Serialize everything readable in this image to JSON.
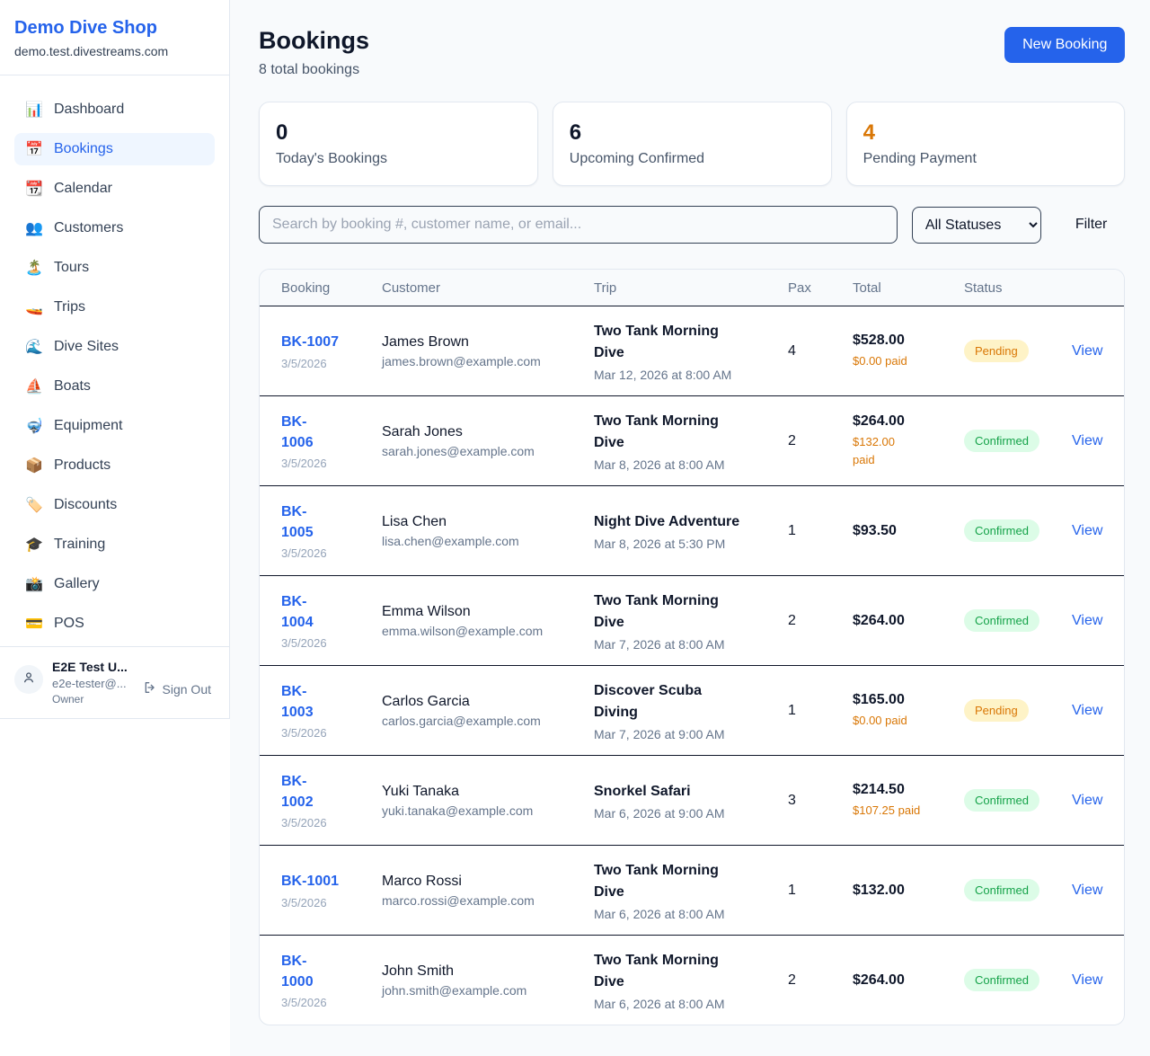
{
  "colors": {
    "accent": "#2563eb",
    "page_bg": "#f8fafc",
    "card_border": "#e2e8f0",
    "row_divider": "#0f172a",
    "pending_fg": "#d97706",
    "pending_bg": "#fef3c7",
    "confirmed_fg": "#16a34a",
    "confirmed_bg": "#dcfce7",
    "paid_text": "#d97706"
  },
  "sidebar": {
    "shop_name": "Demo Dive Shop",
    "domain": "demo.test.divestreams.com",
    "items": [
      {
        "label": "Dashboard",
        "icon": "📊",
        "slug": "dashboard",
        "active": false
      },
      {
        "label": "Bookings",
        "icon": "📅",
        "slug": "bookings",
        "active": true
      },
      {
        "label": "Calendar",
        "icon": "📆",
        "slug": "calendar",
        "active": false
      },
      {
        "label": "Customers",
        "icon": "👥",
        "slug": "customers",
        "active": false
      },
      {
        "label": "Tours",
        "icon": "🏝️",
        "slug": "tours",
        "active": false
      },
      {
        "label": "Trips",
        "icon": "🚤",
        "slug": "trips",
        "active": false
      },
      {
        "label": "Dive Sites",
        "icon": "🌊",
        "slug": "dive-sites",
        "active": false
      },
      {
        "label": "Boats",
        "icon": "⛵",
        "slug": "boats",
        "active": false
      },
      {
        "label": "Equipment",
        "icon": "🤿",
        "slug": "equipment",
        "active": false
      },
      {
        "label": "Products",
        "icon": "📦",
        "slug": "products",
        "active": false
      },
      {
        "label": "Discounts",
        "icon": "🏷️",
        "slug": "discounts",
        "active": false
      },
      {
        "label": "Training",
        "icon": "🎓",
        "slug": "training",
        "active": false
      },
      {
        "label": "Gallery",
        "icon": "📸",
        "slug": "gallery",
        "active": false
      },
      {
        "label": "POS",
        "icon": "💳",
        "slug": "pos",
        "active": false
      }
    ],
    "user": {
      "name": "E2E Test U...",
      "email": "e2e-tester@...",
      "role": "Owner",
      "sign_out_label": "Sign Out"
    }
  },
  "header": {
    "title": "Bookings",
    "subtitle": "8 total bookings",
    "new_booking_label": "New Booking"
  },
  "stats": [
    {
      "value": "0",
      "label": "Today's Bookings",
      "color": "#0f172a",
      "slug": "todays-bookings"
    },
    {
      "value": "6",
      "label": "Upcoming Confirmed",
      "color": "#0f172a",
      "slug": "upcoming-confirmed"
    },
    {
      "value": "4",
      "label": "Pending Payment",
      "color": "#d97706",
      "slug": "pending-payment"
    }
  ],
  "filters": {
    "search_placeholder": "Search by booking #, customer name, or email...",
    "status_selected": "All Statuses",
    "filter_label": "Filter"
  },
  "table": {
    "columns": [
      "Booking",
      "Customer",
      "Trip",
      "Pax",
      "Total",
      "Status"
    ],
    "view_label": "View",
    "rows": [
      {
        "id": "BK-1007",
        "date": "3/5/2026",
        "customer": "James Brown",
        "email": "james.brown@example.com",
        "trip": "Two Tank Morning\nDive",
        "trip_time": "Mar 12, 2026 at 8:00 AM",
        "pax": "4",
        "total": "$528.00",
        "paid": "$0.00 paid",
        "status": "Pending"
      },
      {
        "id": "BK-\n1006",
        "date": "3/5/2026",
        "customer": "Sarah Jones",
        "email": "sarah.jones@example.com",
        "trip": "Two Tank Morning\nDive",
        "trip_time": "Mar 8, 2026 at 8:00 AM",
        "pax": "2",
        "total": "$264.00",
        "paid": "$132.00\npaid",
        "status": "Confirmed"
      },
      {
        "id": "BK-\n1005",
        "date": "3/5/2026",
        "customer": "Lisa Chen",
        "email": "lisa.chen@example.com",
        "trip": "Night Dive Adventure",
        "trip_time": "Mar 8, 2026 at 5:30 PM",
        "pax": "1",
        "total": "$93.50",
        "paid": "",
        "status": "Confirmed"
      },
      {
        "id": "BK-\n1004",
        "date": "3/5/2026",
        "customer": "Emma Wilson",
        "email": "emma.wilson@example.com",
        "trip": "Two Tank Morning\nDive",
        "trip_time": "Mar 7, 2026 at 8:00 AM",
        "pax": "2",
        "total": "$264.00",
        "paid": "",
        "status": "Confirmed"
      },
      {
        "id": "BK-\n1003",
        "date": "3/5/2026",
        "customer": "Carlos Garcia",
        "email": "carlos.garcia@example.com",
        "trip": "Discover Scuba\nDiving",
        "trip_time": "Mar 7, 2026 at 9:00 AM",
        "pax": "1",
        "total": "$165.00",
        "paid": "$0.00 paid",
        "status": "Pending"
      },
      {
        "id": "BK-\n1002",
        "date": "3/5/2026",
        "customer": "Yuki Tanaka",
        "email": "yuki.tanaka@example.com",
        "trip": "Snorkel Safari",
        "trip_time": "Mar 6, 2026 at 9:00 AM",
        "pax": "3",
        "total": "$214.50",
        "paid": "$107.25 paid",
        "status": "Confirmed"
      },
      {
        "id": "BK-1001",
        "date": "3/5/2026",
        "customer": "Marco Rossi",
        "email": "marco.rossi@example.com",
        "trip": "Two Tank Morning\nDive",
        "trip_time": "Mar 6, 2026 at 8:00 AM",
        "pax": "1",
        "total": "$132.00",
        "paid": "",
        "status": "Confirmed"
      },
      {
        "id": "BK-\n1000",
        "date": "3/5/2026",
        "customer": "John Smith",
        "email": "john.smith@example.com",
        "trip": "Two Tank Morning\nDive",
        "trip_time": "Mar 6, 2026 at 8:00 AM",
        "pax": "2",
        "total": "$264.00",
        "paid": "",
        "status": "Confirmed"
      }
    ]
  }
}
